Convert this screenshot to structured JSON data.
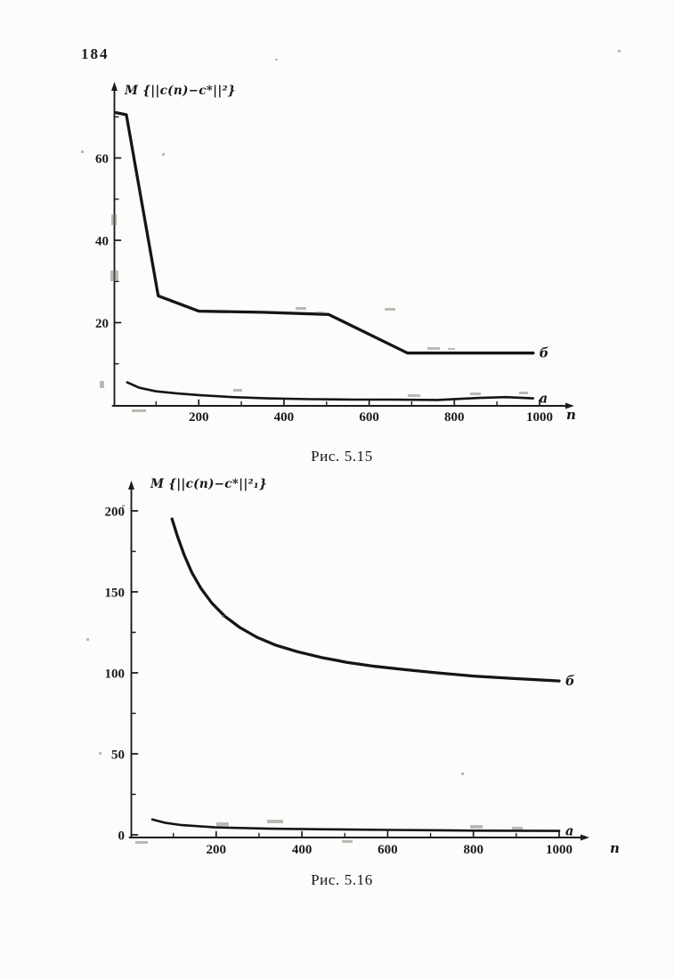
{
  "page": {
    "number": "184",
    "ink_color": "#1c1c1c",
    "paper_color": "#fcfcfa",
    "scan_marks": [
      [
        694,
        56,
        3,
        3
      ],
      [
        309,
        66,
        3,
        2
      ],
      [
        91,
        169,
        3,
        3
      ],
      [
        182,
        172,
        3,
        3
      ],
      [
        125,
        241,
        6,
        12
      ],
      [
        124,
        304,
        9,
        12
      ],
      [
        112,
        428,
        5,
        8
      ],
      [
        148,
        460,
        16,
        3
      ],
      [
        332,
        345,
        12,
        3
      ],
      [
        355,
        350,
        8,
        2
      ],
      [
        432,
        346,
        12,
        3
      ],
      [
        480,
        390,
        14,
        3
      ],
      [
        503,
        391,
        8,
        2
      ],
      [
        262,
        437,
        10,
        3
      ],
      [
        458,
        443,
        14,
        3
      ],
      [
        528,
        441,
        12,
        3
      ],
      [
        583,
        440,
        10,
        3
      ],
      [
        97,
        717,
        3,
        3
      ],
      [
        111,
        845,
        3,
        3
      ],
      [
        137,
        567,
        3,
        3
      ],
      [
        249,
        691,
        3,
        3
      ],
      [
        518,
        868,
        3,
        3
      ],
      [
        243,
        924,
        14,
        4
      ],
      [
        300,
        921,
        18,
        4
      ],
      [
        528,
        927,
        14,
        4
      ],
      [
        575,
        929,
        12,
        3
      ],
      [
        152,
        945,
        14,
        3
      ],
      [
        384,
        944,
        12,
        3
      ],
      [
        432,
        952,
        6,
        2
      ]
    ]
  },
  "chart_data": [
    {
      "type": "line",
      "caption": "Рис. 5.15",
      "ylabel": "M {||c(n)−c*||²}",
      "xlabel": "n",
      "xlim": [
        0,
        1080
      ],
      "ylim": [
        0,
        78
      ],
      "grid": false,
      "legend": "inline labels at right ends of curves",
      "x_ticks_major": [
        200,
        400,
        600,
        800,
        1000
      ],
      "x_ticks_minor": [
        100,
        300,
        500,
        700,
        900
      ],
      "y_ticks_major": [
        20,
        40,
        60
      ],
      "y_ticks_minor": [
        10,
        30,
        50,
        70
      ],
      "series": [
        {
          "key": "b",
          "label": "б",
          "points": [
            [
              6,
              71
            ],
            [
              30,
              70.5
            ],
            [
              105,
              26.5
            ],
            [
              200,
              22.8
            ],
            [
              350,
              22.5
            ],
            [
              505,
              22
            ],
            [
              690,
              12.6
            ],
            [
              985,
              12.6
            ]
          ]
        },
        {
          "key": "a",
          "label": "а",
          "points": [
            [
              32,
              5.5
            ],
            [
              60,
              4.2
            ],
            [
              100,
              3.3
            ],
            [
              150,
              2.8
            ],
            [
              200,
              2.4
            ],
            [
              280,
              1.9
            ],
            [
              360,
              1.6
            ],
            [
              460,
              1.4
            ],
            [
              560,
              1.3
            ],
            [
              660,
              1.3
            ],
            [
              760,
              1.2
            ],
            [
              860,
              1.7
            ],
            [
              920,
              1.9
            ],
            [
              985,
              1.6
            ]
          ]
        }
      ]
    },
    {
      "type": "line",
      "caption": "Рис. 5.16",
      "ylabel": "M {||c(n)−c*||²₁}",
      "xlabel": "n",
      "xlim": [
        0,
        1070
      ],
      "ylim": [
        0,
        218
      ],
      "grid": false,
      "legend": "inline labels at right ends of curves",
      "x_ticks_major": [
        200,
        400,
        600,
        800,
        1000
      ],
      "x_ticks_minor": [
        100,
        300,
        500,
        700,
        900
      ],
      "y_ticks_major": [
        0,
        50,
        100,
        150,
        200
      ],
      "y_ticks_minor": [
        25,
        75,
        125,
        175
      ],
      "series": [
        {
          "key": "b",
          "label": "б",
          "points": [
            [
              97,
              195
            ],
            [
              110,
              184
            ],
            [
              125,
              173
            ],
            [
              143,
              162
            ],
            [
              165,
              152
            ],
            [
              190,
              143
            ],
            [
              220,
              135
            ],
            [
              255,
              128
            ],
            [
              295,
              122
            ],
            [
              340,
              117
            ],
            [
              390,
              113
            ],
            [
              445,
              109.5
            ],
            [
              505,
              106.5
            ],
            [
              570,
              104
            ],
            [
              640,
              102
            ],
            [
              715,
              100
            ],
            [
              800,
              98
            ],
            [
              895,
              96.5
            ],
            [
              1000,
              95
            ]
          ]
        },
        {
          "key": "a",
          "label": "а",
          "points": [
            [
              51,
              9.5
            ],
            [
              80,
              7.5
            ],
            [
              120,
              6
            ],
            [
              196,
              4.6
            ],
            [
              321,
              3.8
            ],
            [
              450,
              3.4
            ],
            [
              605,
              3
            ],
            [
              805,
              2.6
            ],
            [
              1000,
              2.4
            ]
          ]
        }
      ]
    }
  ]
}
